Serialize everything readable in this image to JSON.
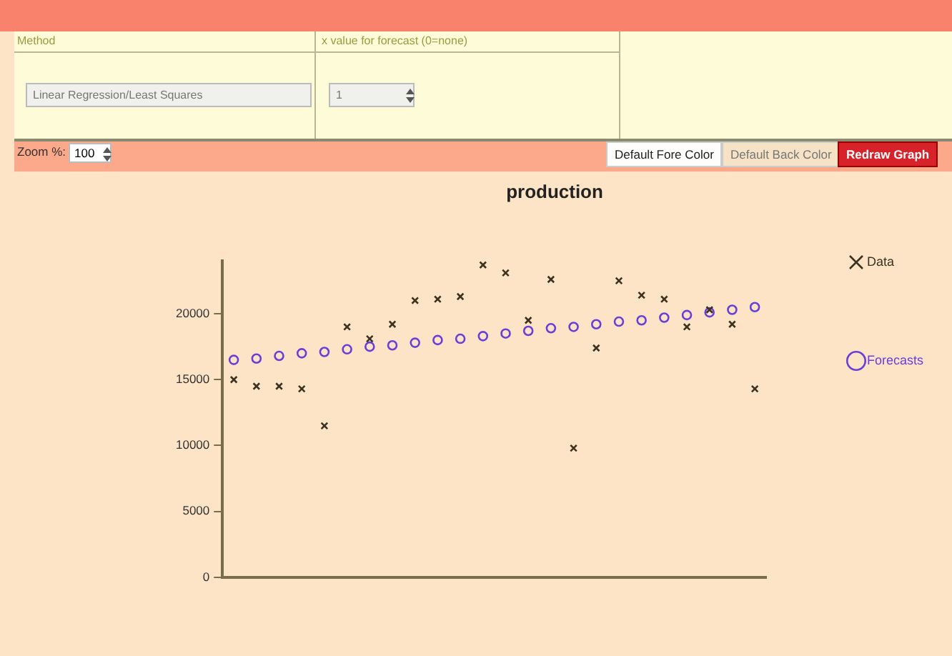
{
  "chart_data": {
    "type": "scatter",
    "title": "production",
    "categories": [
      null,
      null,
      null,
      null,
      null,
      null,
      null,
      null,
      null,
      null,
      null,
      null,
      null,
      null,
      null,
      null,
      null,
      null,
      null,
      null,
      null,
      null,
      null,
      null
    ],
    "series": [
      {
        "name": "Data",
        "color": "#3b3320",
        "marker": "cross",
        "values": [
          15000,
          14500,
          14500,
          14300,
          11500,
          19000,
          18100,
          19200,
          21000,
          21100,
          21300,
          23700,
          23100,
          19500,
          22600,
          9800,
          17400,
          22500,
          21400,
          21100,
          19000,
          20300,
          19200,
          14300
        ]
      },
      {
        "name": "Forecasts",
        "color": "#6a3fd8",
        "marker": "circle",
        "values": [
          16500,
          16600,
          16800,
          17000,
          17100,
          17300,
          17500,
          17600,
          17800,
          18000,
          18100,
          18300,
          18500,
          18700,
          18900,
          19000,
          19200,
          19400,
          19500,
          19700,
          19900,
          20100,
          20300,
          20500
        ]
      }
    ],
    "ylim": [
      0,
      24000
    ],
    "yticks": [
      0,
      5000,
      10000,
      15000,
      20000
    ],
    "tick_labels": "y",
    "legend": "right",
    "annotations": [
      "Method",
      "Linear Regression/Least Squares",
      "x value for forecast (0=none)",
      "1",
      "Zoom %:",
      "100",
      "Default Fore Color",
      "Default Back Color",
      "Redraw Graph"
    ]
  }
}
